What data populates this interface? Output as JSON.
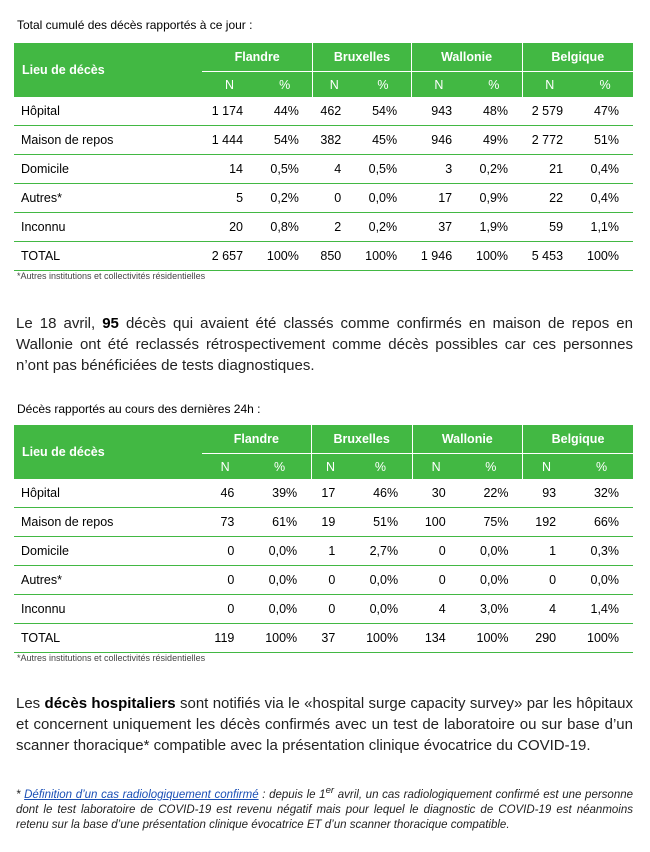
{
  "table1": {
    "caption": "Total cumulé des décès rapportés à ce jour :",
    "corner": "Lieu de décès",
    "regions": [
      "Flandre",
      "Bruxelles",
      "Wallonie",
      "Belgique"
    ],
    "sub": [
      "N",
      "%"
    ],
    "rows": [
      {
        "label": "Hôpital",
        "cells": [
          "1 174",
          "44%",
          "462",
          "54%",
          "943",
          "48%",
          "2 579",
          "47%"
        ]
      },
      {
        "label": "Maison de repos",
        "cells": [
          "1 444",
          "54%",
          "382",
          "45%",
          "946",
          "49%",
          "2 772",
          "51%"
        ]
      },
      {
        "label": "Domicile",
        "cells": [
          "14",
          "0,5%",
          "4",
          "0,5%",
          "3",
          "0,2%",
          "21",
          "0,4%"
        ]
      },
      {
        "label": "Autres*",
        "cells": [
          "5",
          "0,2%",
          "0",
          "0,0%",
          "17",
          "0,9%",
          "22",
          "0,4%"
        ]
      },
      {
        "label": "Inconnu",
        "cells": [
          "20",
          "0,8%",
          "2",
          "0,2%",
          "37",
          "1,9%",
          "59",
          "1,1%"
        ]
      },
      {
        "label": "TOTAL",
        "cells": [
          "2 657",
          "100%",
          "850",
          "100%",
          "1 946",
          "100%",
          "5 453",
          "100%"
        ]
      }
    ],
    "note": "*Autres institutions et collectivités résidentielles"
  },
  "paragraph1": {
    "pre": "Le 18 avril, ",
    "bold": "95",
    "post": " décès qui avaient été classés comme confirmés en maison de repos en Wallonie ont été reclassés rétrospectivement comme décès possibles car ces personnes n’ont pas bénéficiées de tests diagnostiques."
  },
  "table2": {
    "caption": "Décès rapportés au cours des dernières 24h :",
    "corner": "Lieu de décès",
    "regions": [
      "Flandre",
      "Bruxelles",
      "Wallonie",
      "Belgique"
    ],
    "sub": [
      "N",
      "%"
    ],
    "rows": [
      {
        "label": "Hôpital",
        "cells": [
          "46",
          "39%",
          "17",
          "46%",
          "30",
          "22%",
          "93",
          "32%"
        ]
      },
      {
        "label": "Maison de repos",
        "cells": [
          "73",
          "61%",
          "19",
          "51%",
          "100",
          "75%",
          "192",
          "66%"
        ]
      },
      {
        "label": "Domicile",
        "cells": [
          "0",
          "0,0%",
          "1",
          "2,7%",
          "0",
          "0,0%",
          "1",
          "0,3%"
        ]
      },
      {
        "label": "Autres*",
        "cells": [
          "0",
          "0,0%",
          "0",
          "0,0%",
          "0",
          "0,0%",
          "0",
          "0,0%"
        ]
      },
      {
        "label": "Inconnu",
        "cells": [
          "0",
          "0,0%",
          "0",
          "0,0%",
          "4",
          "3,0%",
          "4",
          "1,4%"
        ]
      },
      {
        "label": "TOTAL",
        "cells": [
          "119",
          "100%",
          "37",
          "100%",
          "134",
          "100%",
          "290",
          "100%"
        ]
      }
    ],
    "note": "*Autres institutions et collectivités résidentielles"
  },
  "paragraph2": {
    "pre": "Les ",
    "bold": "décès hospitaliers",
    "post": " sont notifiés via le «hospital surge capacity survey» par les hôpitaux et concernent uniquement les décès confirmés avec un test de laboratoire ou sur base d’un scanner thoracique* compatible avec la présentation clinique évocatrice du COVID-19."
  },
  "footnote": {
    "star": "* ",
    "link": "Définition d’un cas radiologiquement confirmé",
    "mid": " : depuis le 1",
    "sup": "er",
    "post": " avril, un cas radiologiquement confirmé est une personne dont le test laboratoire de COVID-19 est revenu négatif mais pour lequel le diagnostic de COVID-19 est néanmoins retenu sur la base d’une présentation clinique évocatrice ET d’un scanner thoracique compatible."
  },
  "colors": {
    "header_green": "#42b843",
    "link_blue": "#1a4fb5"
  }
}
